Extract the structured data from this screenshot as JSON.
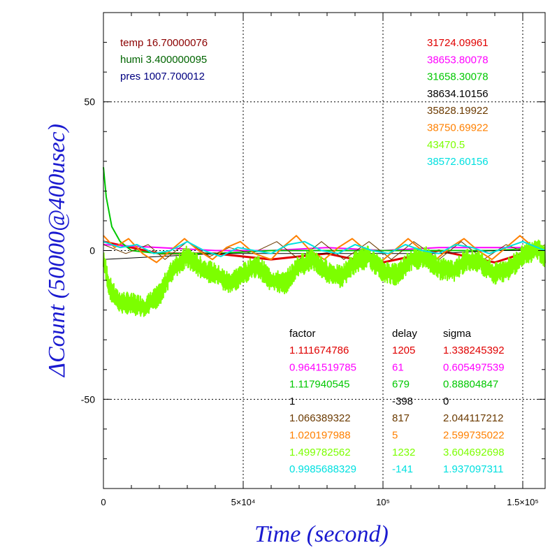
{
  "chart_data": {
    "type": "line",
    "xlabel": "Time (second)",
    "ylabel": "ΔCount (50000@400usec)",
    "xlim": [
      0,
      158000
    ],
    "ylim": [
      -80,
      80
    ],
    "xticks": [
      {
        "value": 0,
        "label": "0"
      },
      {
        "value": 50000,
        "label": "5×10⁴"
      },
      {
        "value": 100000,
        "label": "10⁵"
      },
      {
        "value": 150000,
        "label": "1.5×10⁵"
      }
    ],
    "yticks": [
      {
        "value": 50,
        "label": "50"
      },
      {
        "value": 0,
        "label": "0"
      },
      {
        "value": -50,
        "label": "-50"
      }
    ],
    "grid": true,
    "env": [
      {
        "text": "temp 16.70000076",
        "color": "#8b0000"
      },
      {
        "text": "humi 3.400000095",
        "color": "#006400"
      },
      {
        "text": "pres 1007.700012",
        "color": "#000080"
      }
    ],
    "means": [
      "31724.09961",
      "38653.80078",
      "31658.30078",
      "38634.10156",
      "35828.19922",
      "38750.69922",
      "43470.5",
      "38572.60156"
    ],
    "table": {
      "headers": [
        "factor",
        "delay",
        "sigma"
      ],
      "rows": [
        [
          "1.111674786",
          "1205",
          "1.338245392"
        ],
        [
          "0.9641519785",
          "61",
          "0.605497539"
        ],
        [
          "1.117940545",
          "679",
          "0.88804847"
        ],
        [
          "1",
          "-398",
          "0"
        ],
        [
          "1.066389322",
          "817",
          "2.044117212"
        ],
        [
          "1.020197988",
          "5",
          "2.599735022"
        ],
        [
          "1.499782562",
          "1232",
          "3.604692698"
        ],
        [
          "0.9985688329",
          "-141",
          "1.937097311"
        ]
      ]
    },
    "series": [
      {
        "color": "#e00000",
        "width": 3,
        "noise": 0,
        "points": [
          [
            0,
            3
          ],
          [
            10000,
            1
          ],
          [
            20000,
            -1
          ],
          [
            30000,
            -1
          ],
          [
            40000,
            -1
          ],
          [
            50000,
            -2
          ],
          [
            60000,
            -3
          ],
          [
            70000,
            -2
          ],
          [
            80000,
            -1
          ],
          [
            90000,
            -3
          ],
          [
            100000,
            -4
          ],
          [
            110000,
            -2
          ],
          [
            120000,
            0
          ],
          [
            130000,
            -2
          ],
          [
            140000,
            -4
          ],
          [
            150000,
            -1
          ],
          [
            158000,
            1
          ]
        ]
      },
      {
        "color": "#ff00ff",
        "width": 2,
        "noise": 0,
        "points": [
          [
            0,
            2
          ],
          [
            20000,
            1
          ],
          [
            40000,
            0
          ],
          [
            60000,
            0
          ],
          [
            80000,
            1
          ],
          [
            100000,
            0
          ],
          [
            120000,
            1
          ],
          [
            140000,
            1
          ],
          [
            158000,
            1
          ]
        ]
      },
      {
        "color": "#00c800",
        "width": 2,
        "noise": 0,
        "points": [
          [
            0,
            28
          ],
          [
            1000,
            18
          ],
          [
            3000,
            8
          ],
          [
            6000,
            3
          ],
          [
            10000,
            0
          ],
          [
            20000,
            -1
          ],
          [
            40000,
            -1
          ],
          [
            60000,
            0
          ],
          [
            80000,
            0
          ],
          [
            100000,
            0
          ],
          [
            120000,
            0
          ],
          [
            140000,
            0
          ],
          [
            158000,
            1
          ]
        ]
      },
      {
        "color": "#000000",
        "width": 1,
        "noise": 0,
        "points": [
          [
            0,
            -3
          ],
          [
            20000,
            -2
          ],
          [
            40000,
            -1
          ],
          [
            60000,
            -1
          ],
          [
            80000,
            -1
          ],
          [
            100000,
            -1
          ],
          [
            120000,
            -1
          ],
          [
            140000,
            0
          ],
          [
            158000,
            0
          ]
        ]
      },
      {
        "color": "#6b3a00",
        "width": 1,
        "noise": 0,
        "points": [
          [
            0,
            2
          ],
          [
            8000,
            -1
          ],
          [
            16000,
            2
          ],
          [
            22000,
            -3
          ],
          [
            30000,
            3
          ],
          [
            38000,
            -2
          ],
          [
            45000,
            1
          ],
          [
            53000,
            -1
          ],
          [
            62000,
            3
          ],
          [
            70000,
            -3
          ],
          [
            78000,
            3
          ],
          [
            86000,
            -3
          ],
          [
            95000,
            3
          ],
          [
            103000,
            -3
          ],
          [
            111000,
            3
          ],
          [
            120000,
            -3
          ],
          [
            128000,
            3
          ],
          [
            136000,
            -3
          ],
          [
            144000,
            2
          ],
          [
            152000,
            -1
          ],
          [
            158000,
            2
          ]
        ]
      },
      {
        "color": "#ff8000",
        "width": 2,
        "noise": 0,
        "points": [
          [
            0,
            5
          ],
          [
            4000,
            1
          ],
          [
            9000,
            4
          ],
          [
            14000,
            -1
          ],
          [
            19000,
            -4
          ],
          [
            24000,
            0
          ],
          [
            29000,
            4
          ],
          [
            34000,
            0
          ],
          [
            39000,
            -3
          ],
          [
            44000,
            1
          ],
          [
            49000,
            3
          ],
          [
            54000,
            -1
          ],
          [
            60000,
            -3
          ],
          [
            64000,
            1
          ],
          [
            69000,
            5
          ],
          [
            74000,
            0
          ],
          [
            79000,
            -3
          ],
          [
            84000,
            1
          ],
          [
            89000,
            4
          ],
          [
            94000,
            0
          ],
          [
            99000,
            -4
          ],
          [
            104000,
            0
          ],
          [
            109000,
            4
          ],
          [
            114000,
            0
          ],
          [
            119000,
            -3
          ],
          [
            124000,
            1
          ],
          [
            129000,
            4
          ],
          [
            134000,
            0
          ],
          [
            139000,
            -3
          ],
          [
            144000,
            1
          ],
          [
            149000,
            5
          ],
          [
            154000,
            1
          ],
          [
            158000,
            -1
          ]
        ]
      },
      {
        "color": "#7cff00",
        "width": 2,
        "noise": 2.5,
        "points": [
          [
            0,
            -3
          ],
          [
            2000,
            -12
          ],
          [
            5000,
            -17
          ],
          [
            10000,
            -18
          ],
          [
            15000,
            -19
          ],
          [
            20000,
            -15
          ],
          [
            25000,
            -6
          ],
          [
            30000,
            -2
          ],
          [
            35000,
            -6
          ],
          [
            40000,
            -8
          ],
          [
            45000,
            -11
          ],
          [
            50000,
            -8
          ],
          [
            55000,
            -5
          ],
          [
            60000,
            -10
          ],
          [
            65000,
            -11
          ],
          [
            70000,
            -5
          ],
          [
            75000,
            -3
          ],
          [
            80000,
            -7
          ],
          [
            85000,
            -9
          ],
          [
            90000,
            -4
          ],
          [
            95000,
            -2
          ],
          [
            100000,
            -7
          ],
          [
            105000,
            -8
          ],
          [
            110000,
            -3
          ],
          [
            115000,
            -2
          ],
          [
            120000,
            -6
          ],
          [
            125000,
            -7
          ],
          [
            130000,
            -3
          ],
          [
            135000,
            -4
          ],
          [
            140000,
            -8
          ],
          [
            145000,
            -6
          ],
          [
            150000,
            -2
          ],
          [
            155000,
            1
          ],
          [
            158000,
            -2
          ]
        ]
      },
      {
        "color": "#00e0e0",
        "width": 2,
        "noise": 0,
        "points": [
          [
            0,
            3
          ],
          [
            6000,
            1
          ],
          [
            12000,
            2
          ],
          [
            18000,
            -1
          ],
          [
            24000,
            0
          ],
          [
            30000,
            3
          ],
          [
            36000,
            0
          ],
          [
            42000,
            -2
          ],
          [
            48000,
            1
          ],
          [
            54000,
            0
          ],
          [
            60000,
            -1
          ],
          [
            66000,
            2
          ],
          [
            72000,
            3
          ],
          [
            78000,
            0
          ],
          [
            84000,
            -1
          ],
          [
            90000,
            2
          ],
          [
            96000,
            0
          ],
          [
            102000,
            -1
          ],
          [
            108000,
            2
          ],
          [
            114000,
            0
          ],
          [
            120000,
            -1
          ],
          [
            126000,
            2
          ],
          [
            132000,
            1
          ],
          [
            138000,
            -1
          ],
          [
            144000,
            1
          ],
          [
            150000,
            3
          ],
          [
            158000,
            0
          ]
        ]
      }
    ]
  }
}
